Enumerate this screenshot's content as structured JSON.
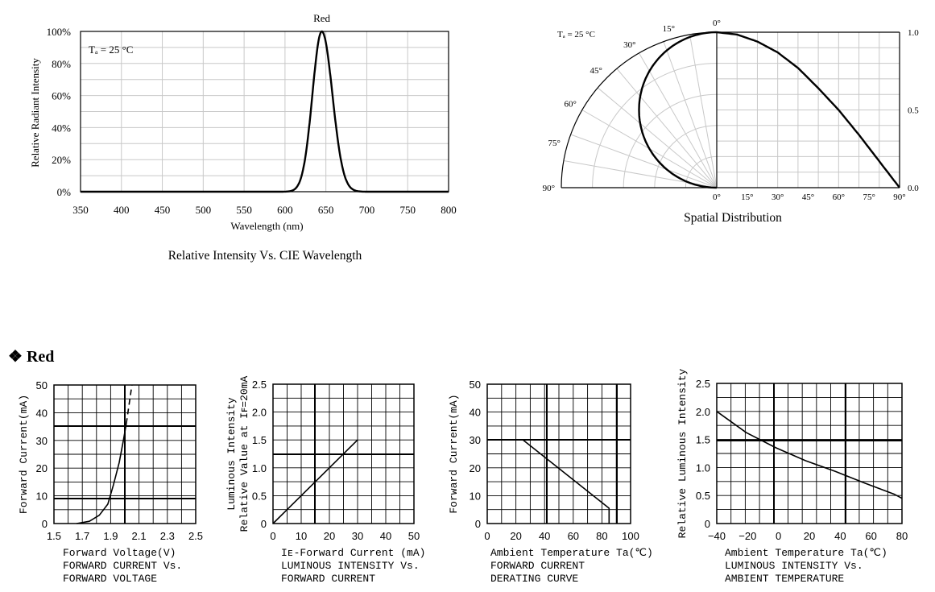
{
  "section": {
    "bullet": "❖",
    "title": "Red"
  },
  "spectrum": {
    "caption": "Relative Intensity Vs. CIE Wavelength",
    "note": "Tₐ = 25 °C"
  },
  "spatial": {
    "caption": "Spatial Distribution",
    "note": "Tₐ = 25 °C"
  },
  "chart_data": [
    {
      "id": "spectrum",
      "type": "line",
      "title": "Red",
      "xlabel": "Wavelength (nm)",
      "ylabel": "Relative  Radiant Intensity",
      "xlim": [
        350,
        800
      ],
      "ylim": [
        0,
        100
      ],
      "xticks": [
        350,
        400,
        450,
        500,
        550,
        600,
        650,
        700,
        750,
        800
      ],
      "yticks": [
        "0%",
        "20%",
        "40%",
        "60%",
        "80%",
        "100%"
      ],
      "grid": true,
      "series": [
        {
          "x": [
            600,
            610,
            620,
            630,
            635,
            640,
            645,
            650,
            655,
            660,
            665,
            670,
            680,
            690
          ],
          "y": [
            0,
            0.5,
            4,
            30,
            58,
            88,
            100,
            90,
            62,
            30,
            10,
            3,
            0.5,
            0
          ]
        }
      ]
    },
    {
      "id": "spatial",
      "type": "line",
      "title": "Spatial Distribution",
      "angle_ticks": [
        "0°",
        "15°",
        "30°",
        "45°",
        "60°",
        "75°",
        "90°"
      ],
      "right_ticks": [
        "1.0",
        "0.5",
        "0.0"
      ],
      "xticks": [
        "0°",
        "15°",
        "30°",
        "45°",
        "60°",
        "75°",
        "90°"
      ],
      "grid": true,
      "series": [
        {
          "angle": [
            0,
            10,
            20,
            30,
            40,
            50,
            60,
            70,
            80,
            90
          ],
          "value": [
            1.0,
            0.985,
            0.94,
            0.87,
            0.77,
            0.64,
            0.5,
            0.34,
            0.17,
            0.0
          ]
        }
      ]
    },
    {
      "id": "iv",
      "type": "line",
      "xlabel": "Forward  Voltage(V)",
      "caption": [
        "FORWARD  CURRENT  Vs.",
        "FORWARD  VOLTAGE"
      ],
      "ylabel": "Forward  Current(mA)",
      "xlim": [
        1.5,
        2.5
      ],
      "ylim": [
        0,
        50
      ],
      "xticks": [
        "1.5",
        "1.7",
        "1.9",
        "2.1",
        "2.3",
        "2.5"
      ],
      "yticks": [
        "0",
        "10",
        "20",
        "30",
        "40",
        "50"
      ],
      "grid": true,
      "series": [
        {
          "x": [
            1.66,
            1.75,
            1.82,
            1.88,
            1.92,
            1.96,
            1.99,
            2.01
          ],
          "y": [
            0,
            0.8,
            3,
            7,
            14,
            22,
            30,
            36
          ]
        },
        {
          "dashed": true,
          "x": [
            2.01,
            2.05
          ],
          "y": [
            36,
            50
          ]
        }
      ]
    },
    {
      "id": "lum_if",
      "type": "line",
      "xlabel": "Iᴇ-Forward  Current (mA)",
      "caption": [
        "LUMINOUS  INTENSITY  Vs.",
        "FORWARD  CURRENT"
      ],
      "ylabel": [
        "Luminous  Intensity",
        "Relative Value at  Iꜰ=20mA"
      ],
      "xlim": [
        0,
        50
      ],
      "ylim": [
        0,
        2.5
      ],
      "xticks": [
        "0",
        "10",
        "20",
        "30",
        "40",
        "50"
      ],
      "yticks": [
        "0",
        "0.5",
        "1.0",
        "1.5",
        "2.0",
        "2.5"
      ],
      "grid": true,
      "series": [
        {
          "x": [
            0,
            30
          ],
          "y": [
            0,
            1.5
          ]
        }
      ]
    },
    {
      "id": "derating",
      "type": "line",
      "xlabel": "Ambient  Temperature  Ta(℃)",
      "caption": [
        "FORWARD  CURRENT",
        "DERATING  CURVE"
      ],
      "ylabel": "Forward  Current(mA)",
      "xlim": [
        0,
        100
      ],
      "ylim": [
        0,
        50
      ],
      "xticks": [
        "0",
        "20",
        "40",
        "60",
        "80",
        "100"
      ],
      "yticks": [
        "0",
        "10",
        "20",
        "30",
        "40",
        "50"
      ],
      "grid": true,
      "series": [
        {
          "x": [
            0,
            25,
            85,
            85
          ],
          "y": [
            30,
            30,
            5.5,
            0
          ]
        }
      ]
    },
    {
      "id": "lum_ta",
      "type": "line",
      "xlabel": "Ambient  Temperature  Ta(℃)",
      "caption": [
        "LUMINOUS  INTENSITY  Vs.",
        "AMBIENT  TEMPERATURE"
      ],
      "ylabel": "Relative  Luminous  Intensity",
      "xlim": [
        -40,
        85
      ],
      "ylim": [
        0,
        2.5
      ],
      "xticks": [
        "−40",
        "−20",
        "0",
        "20",
        "40",
        "60",
        "80"
      ],
      "yticks": [
        "0",
        "0.5",
        "1.0",
        "1.5",
        "2.0",
        "2.5"
      ],
      "grid": true,
      "series": [
        {
          "x": [
            -40,
            -20,
            0,
            20,
            40,
            60,
            80,
            85
          ],
          "y": [
            2.0,
            1.62,
            1.35,
            1.12,
            0.93,
            0.72,
            0.52,
            0.45
          ]
        }
      ]
    }
  ]
}
